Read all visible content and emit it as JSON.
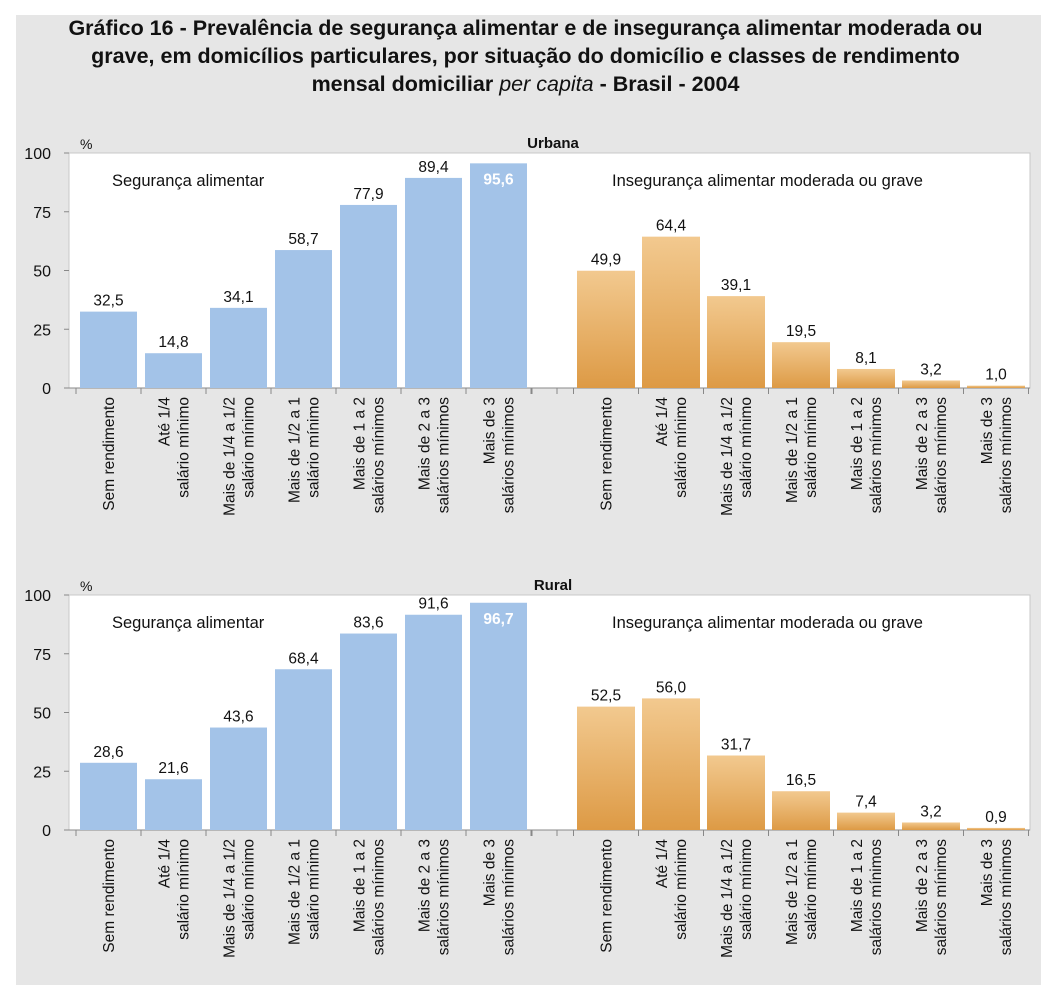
{
  "title": {
    "line1": "Gráfico 16 - Prevalência de segurança alimentar e de insegurança alimentar moderada ou",
    "line2": "grave, em domicílios particulares, por situação do domicílio e classes de rendimento",
    "line3_bold": "mensal domiciliar",
    "line3_italic": "per capita",
    "line3_end": "- Brasil - 2004"
  },
  "chart_data": [
    {
      "type": "bar",
      "title": "Urbana",
      "ylabel": "%",
      "ylim": [
        0,
        100
      ],
      "yticks": [
        0,
        25,
        50,
        75,
        100
      ],
      "groups": [
        {
          "name": "Segurança alimentar",
          "color": "#a3c3e8",
          "categories": [
            [
              "Sem rendimento"
            ],
            [
              "Até 1/4",
              "salário mínimo"
            ],
            [
              "Mais de 1/4 a 1/2",
              "salário mínimo"
            ],
            [
              "Mais de 1/2 a 1",
              "salário mínimo"
            ],
            [
              "Mais de 1 a 2",
              "salários mínimos"
            ],
            [
              "Mais de 2 a 3",
              "salários mínimos"
            ],
            [
              "Mais de 3",
              "salários mínimos"
            ]
          ],
          "values": [
            32.5,
            14.8,
            34.1,
            58.7,
            77.9,
            89.4,
            95.6
          ],
          "labels": [
            "32,5",
            "14,8",
            "34,1",
            "58,7",
            "77,9",
            "89,4",
            "95,6"
          ]
        },
        {
          "name": "Insegurança alimentar moderada ou grave",
          "color": "#e8b066",
          "categories": [
            [
              "Sem rendimento"
            ],
            [
              "Até 1/4",
              "salário mínimo"
            ],
            [
              "Mais de 1/4 a 1/2",
              "salário mínimo"
            ],
            [
              "Mais de 1/2 a 1",
              "salário mínimo"
            ],
            [
              "Mais de 1 a 2",
              "salários mínimos"
            ],
            [
              "Mais de 2 a 3",
              "salários mínimos"
            ],
            [
              "Mais de 3",
              "salários mínimos"
            ]
          ],
          "values": [
            49.9,
            64.4,
            39.1,
            19.5,
            8.1,
            3.2,
            1.0
          ],
          "labels": [
            "49,9",
            "64,4",
            "39,1",
            "19,5",
            "8,1",
            "3,2",
            "1,0"
          ]
        }
      ]
    },
    {
      "type": "bar",
      "title": "Rural",
      "ylabel": "%",
      "ylim": [
        0,
        100
      ],
      "yticks": [
        0,
        25,
        50,
        75,
        100
      ],
      "groups": [
        {
          "name": "Segurança alimentar",
          "color": "#a3c3e8",
          "categories": [
            [
              "Sem rendimento"
            ],
            [
              "Até 1/4",
              "salário mínimo"
            ],
            [
              "Mais de 1/4 a 1/2",
              "salário mínimo"
            ],
            [
              "Mais de 1/2 a 1",
              "salário mínimo"
            ],
            [
              "Mais de 1 a 2",
              "salários mínimos"
            ],
            [
              "Mais de 2 a 3",
              "salários mínimos"
            ],
            [
              "Mais de 3",
              "salários mínimos"
            ]
          ],
          "values": [
            28.6,
            21.6,
            43.6,
            68.4,
            83.6,
            91.6,
            96.7
          ],
          "labels": [
            "28,6",
            "21,6",
            "43,6",
            "68,4",
            "83,6",
            "91,6",
            "96,7"
          ]
        },
        {
          "name": "Insegurança alimentar moderada ou grave",
          "color": "#e8b066",
          "categories": [
            [
              "Sem rendimento"
            ],
            [
              "Até 1/4",
              "salário mínimo"
            ],
            [
              "Mais de 1/4 a 1/2",
              "salário mínimo"
            ],
            [
              "Mais de 1/2 a 1",
              "salário mínimo"
            ],
            [
              "Mais de 1 a 2",
              "salários mínimos"
            ],
            [
              "Mais de 2 a 3",
              "salários mínimos"
            ],
            [
              "Mais de 3",
              "salários mínimos"
            ]
          ],
          "values": [
            52.5,
            56.0,
            31.7,
            16.5,
            7.4,
            3.2,
            0.9
          ],
          "labels": [
            "52,5",
            "56,0",
            "31,7",
            "16,5",
            "7,4",
            "3,2",
            "0,9"
          ]
        }
      ]
    }
  ]
}
